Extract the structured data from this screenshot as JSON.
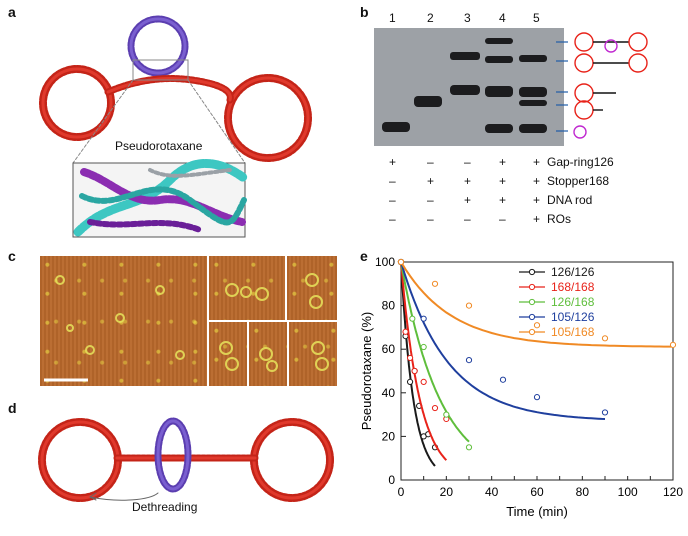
{
  "panels": {
    "a": {
      "label": "a",
      "caption": "Pseudorotaxane",
      "colors": {
        "ring": "#d62a1e",
        "gap_ring": "#5b3eb0",
        "helix_a": "#3dc7c2",
        "helix_b": "#8b2db1"
      }
    },
    "b": {
      "label": "b",
      "lane_numbers": [
        "1",
        "2",
        "3",
        "4",
        "5"
      ],
      "rows": [
        {
          "signs": [
            "+",
            "–",
            "–",
            "+",
            "+"
          ],
          "name": "Gap-ring126"
        },
        {
          "signs": [
            "–",
            "+",
            "+",
            "+",
            "+"
          ],
          "name": "Stopper168"
        },
        {
          "signs": [
            "–",
            "–",
            "+",
            "+",
            "+"
          ],
          "name": "DNA rod"
        },
        {
          "signs": [
            "–",
            "–",
            "–",
            "–",
            "+"
          ],
          "name": "ROs"
        }
      ]
    },
    "c": {
      "label": "c"
    },
    "d": {
      "label": "d",
      "caption": "Dethreading"
    },
    "e": {
      "label": "e"
    }
  },
  "chart_data": {
    "type": "line",
    "xlabel": "Time (min)",
    "ylabel": "Pseudorotaxane (%)",
    "xlim": [
      0,
      120
    ],
    "ylim": [
      0,
      100
    ],
    "xticks": [
      0,
      10,
      20,
      30,
      40,
      50,
      60,
      70,
      80,
      90,
      100,
      110,
      120
    ],
    "xtick_labels": [
      "0",
      "",
      "20",
      "",
      "40",
      "",
      "60",
      "",
      "80",
      "",
      "100",
      "",
      "120"
    ],
    "yticks": [
      0,
      20,
      40,
      60,
      80,
      100
    ],
    "legend_position": "top-right",
    "series": [
      {
        "name": "126/126",
        "color": "#1a1a1a",
        "x": [
          0,
          2,
          4,
          6,
          8,
          10,
          12,
          15
        ],
        "y": [
          100,
          66,
          45,
          50,
          34,
          20,
          21,
          15
        ],
        "fit": {
          "y0": 100,
          "k": 0.183,
          "xmax": 15
        }
      },
      {
        "name": "168/168",
        "color": "#e8231a",
        "x": [
          0,
          2,
          4,
          6,
          10,
          15,
          20
        ],
        "y": [
          100,
          68,
          56,
          50,
          45,
          33,
          28
        ],
        "fit": {
          "y0": 100,
          "k": 0.12,
          "xmax": 20
        }
      },
      {
        "name": "126/168",
        "color": "#5fbe3c",
        "x": [
          0,
          5,
          10,
          20,
          30
        ],
        "y": [
          100,
          74,
          61,
          30,
          15
        ],
        "fit": {
          "y0": 100,
          "k": 0.058,
          "xmax": 30
        }
      },
      {
        "name": "105/126",
        "color": "#1f3f9e",
        "x": [
          0,
          10,
          30,
          45,
          60,
          90
        ],
        "y": [
          100,
          74,
          55,
          46,
          38,
          31
        ],
        "fit": {
          "y0": 100,
          "k": 0.048,
          "plateau": 27,
          "xmax": 90
        }
      },
      {
        "name": "105/168",
        "color": "#f08a25",
        "x": [
          0,
          15,
          30,
          60,
          90,
          120
        ],
        "y": [
          100,
          90,
          80,
          71,
          65,
          62
        ],
        "fit": {
          "y0": 100,
          "k": 0.045,
          "plateau": 61,
          "xmax": 120
        }
      }
    ]
  }
}
